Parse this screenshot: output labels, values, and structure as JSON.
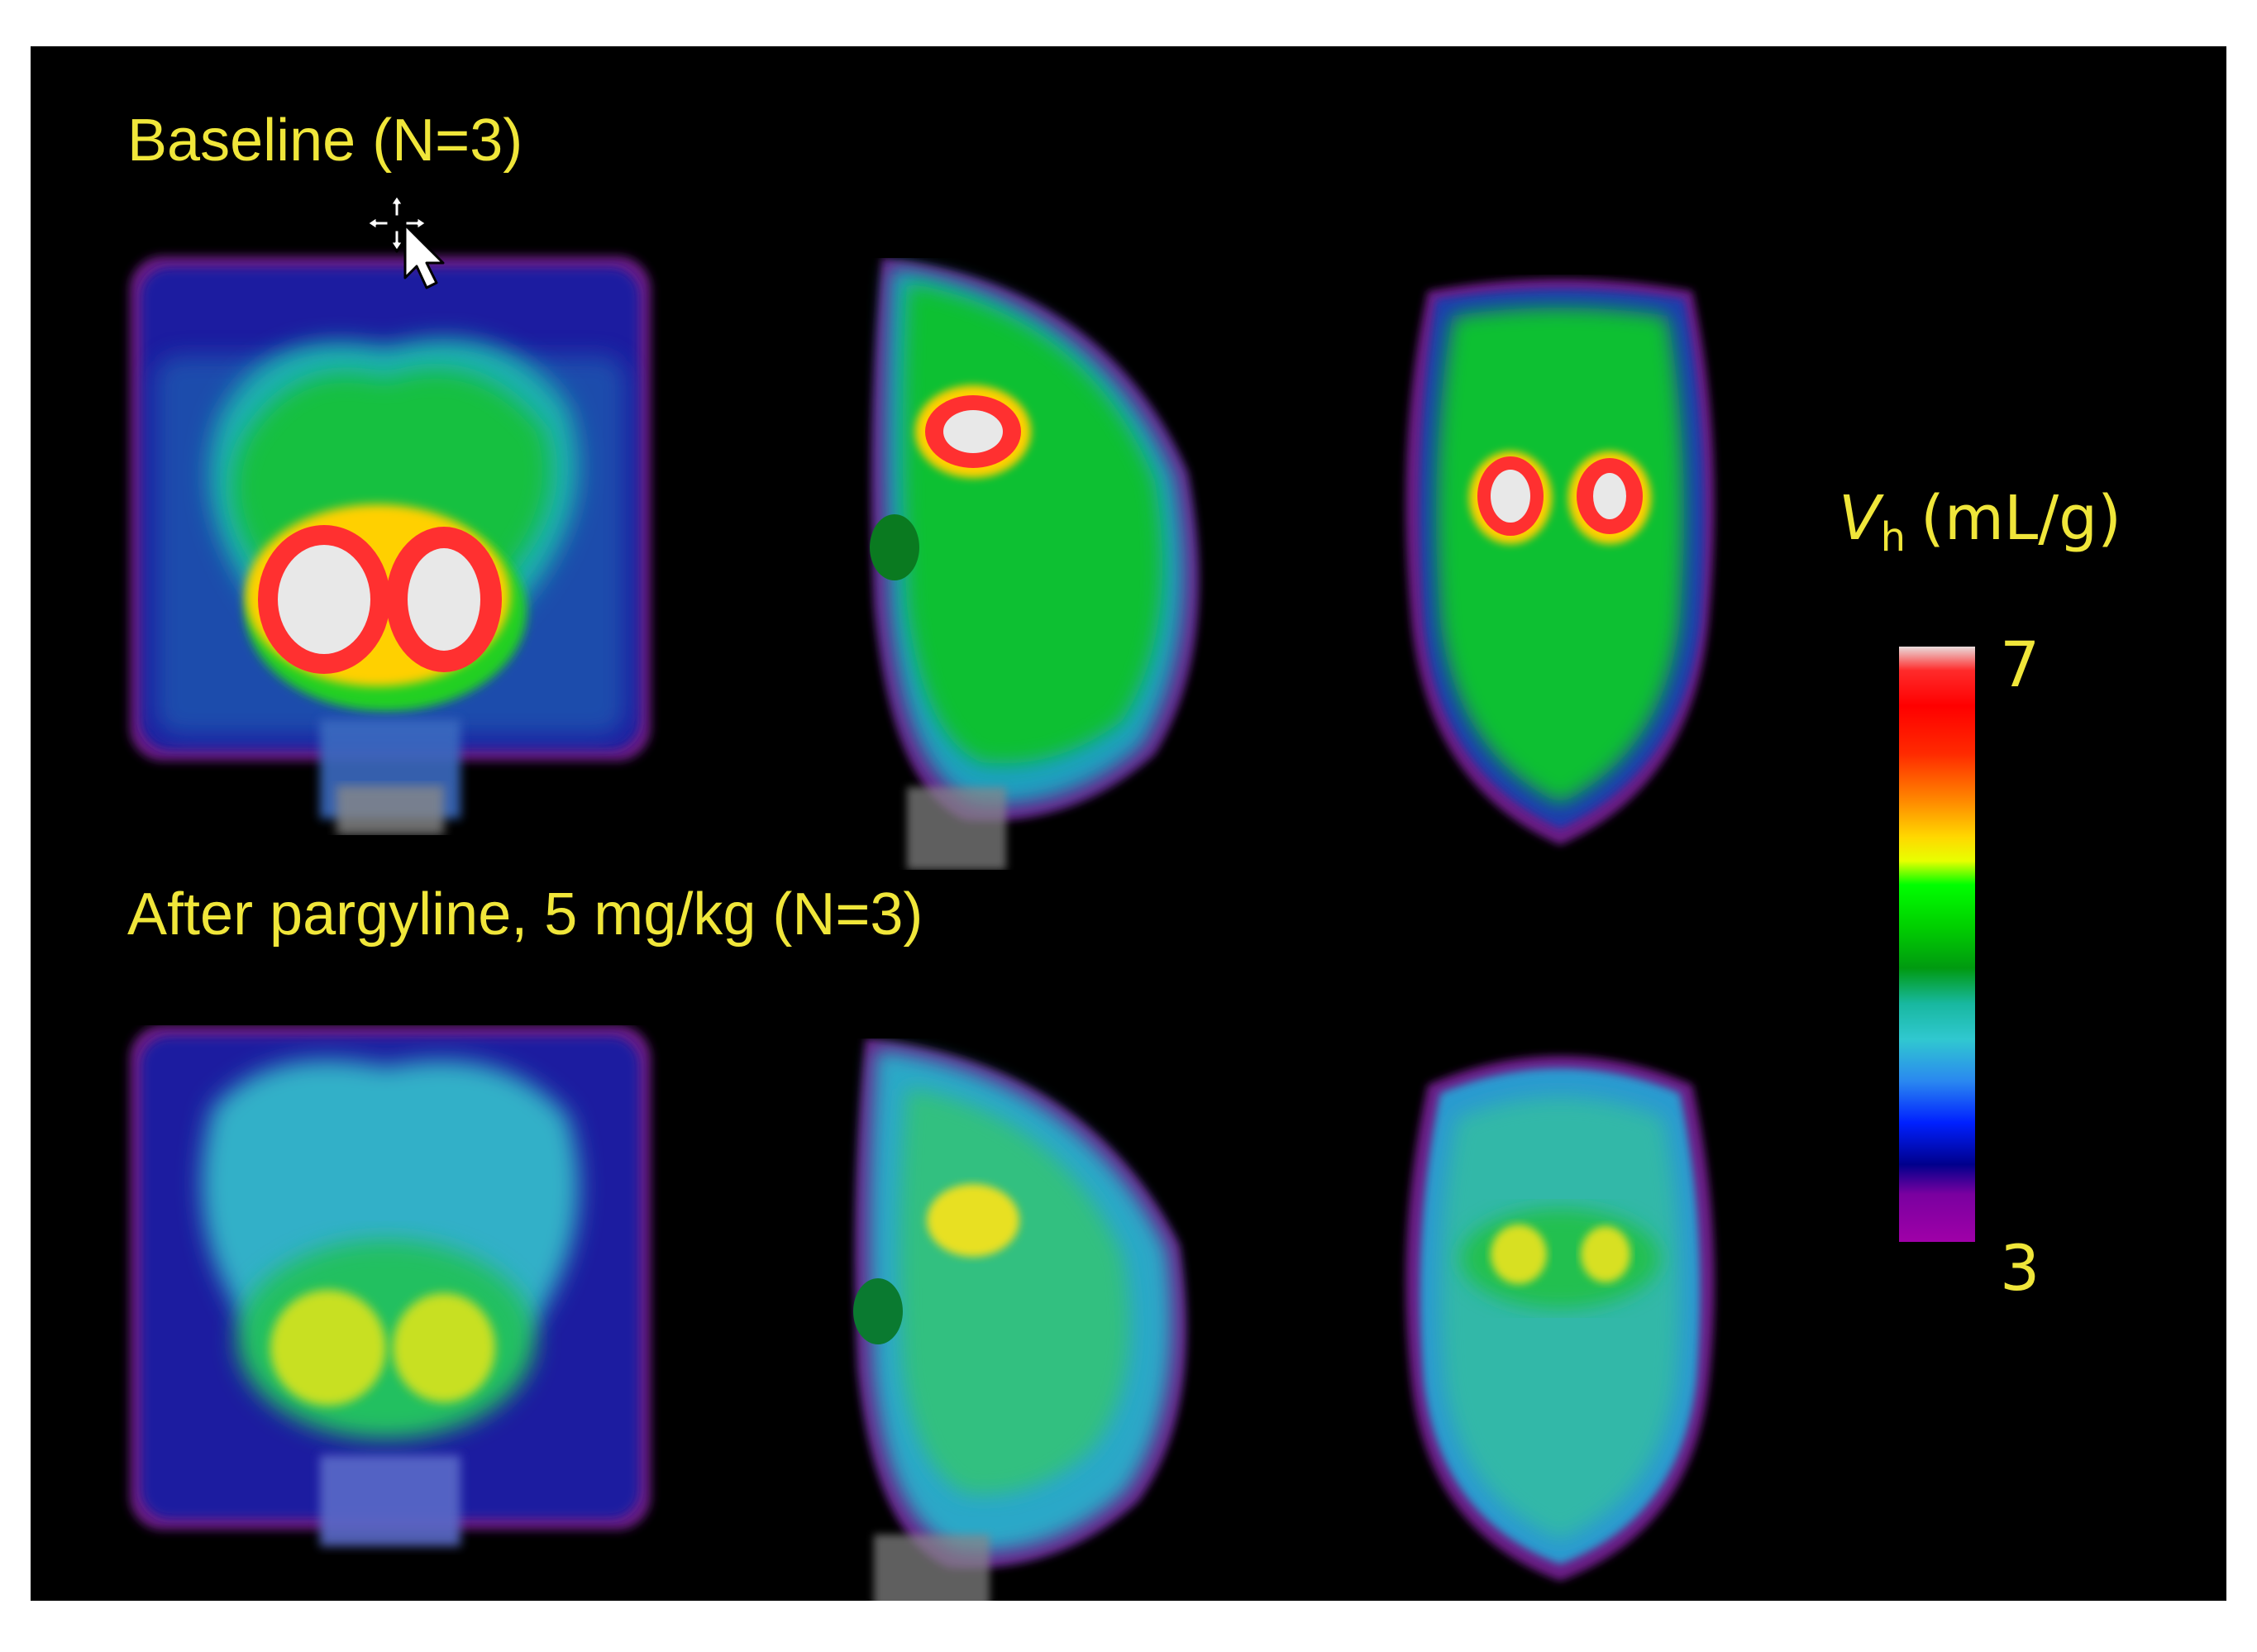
{
  "rows": [
    {
      "label": "Baseline (N=3)"
    },
    {
      "label": "After pargyline, 5 mg/kg (N=3)"
    }
  ],
  "colorbar": {
    "symbol": "V",
    "subscript": "h",
    "unit": "(mL/g)",
    "max_label": "7",
    "min_label": "3",
    "max_value": 7,
    "min_value": 3
  },
  "colors": {
    "background": "#000000",
    "label_text": "#f0e63a"
  },
  "icons": {
    "cursor": "move-cursor-icon"
  }
}
